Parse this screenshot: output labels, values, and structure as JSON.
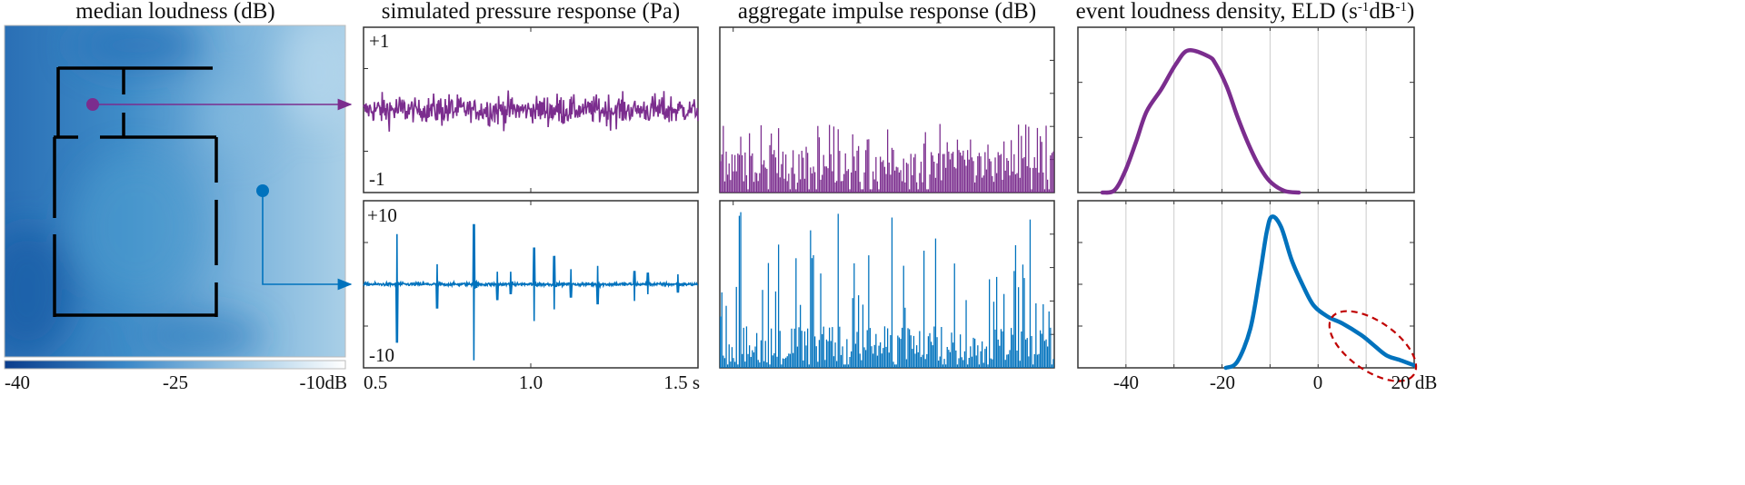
{
  "colors": {
    "purple": "#7b2d8e",
    "blue": "#0072bd",
    "annotation": "#c00000",
    "heat_dark": "#0b3d8c",
    "heat_light": "#ffffff"
  },
  "heatmap": {
    "title": "median loudness  (dB)",
    "colorbar": {
      "min_label": "-40",
      "mid_label": "-25",
      "max_label": "-10dB",
      "range": [
        -40,
        -10
      ]
    }
  },
  "pressure": {
    "title": "simulated pressure response (Pa)",
    "x_labels": [
      "0.5",
      "1.0",
      "1.5 s"
    ],
    "top": {
      "ymax_label": "+1",
      "ymin_label": "-1",
      "ylim": [
        -1,
        1
      ],
      "xlim": [
        0.5,
        1.5
      ],
      "typical_amplitude": 0.3
    },
    "bottom": {
      "ymax_label": "+10",
      "ymin_label": "-10",
      "ylim": [
        -10,
        10
      ],
      "xlim": [
        0.5,
        1.5
      ],
      "spikes": [
        {
          "t": 0.6,
          "up": 6.0,
          "down": -7.0
        },
        {
          "t": 0.72,
          "up": 2.4,
          "down": -2.9
        },
        {
          "t": 0.83,
          "up": 7.2,
          "down": -9.1
        },
        {
          "t": 0.9,
          "up": 1.5,
          "down": -1.9
        },
        {
          "t": 0.94,
          "up": 1.5,
          "down": -1.2
        },
        {
          "t": 1.01,
          "up": 4.4,
          "down": -4.4
        },
        {
          "t": 1.07,
          "up": 3.4,
          "down": -3.0
        },
        {
          "t": 1.12,
          "up": 1.8,
          "down": -1.6
        },
        {
          "t": 1.2,
          "up": 2.2,
          "down": -2.4
        },
        {
          "t": 1.31,
          "up": 1.6,
          "down": -2.0
        },
        {
          "t": 1.35,
          "up": 1.4,
          "down": -1.2
        },
        {
          "t": 1.44,
          "up": 1.2,
          "down": -1.0
        }
      ]
    }
  },
  "impulse": {
    "title": "aggregate impulse response (dB)"
  },
  "eld": {
    "title_main": "event loudness density, ELD (s",
    "title_sup1": "-1",
    "title_mid": "dB",
    "title_sup2": "-1",
    "title_end": ")",
    "x_labels": [
      "-40",
      "-20",
      "0",
      "20 dB"
    ]
  },
  "chart_data": [
    {
      "type": "heatmap",
      "title": "median loudness  (dB)",
      "colorbar_range": [
        -40,
        -10
      ],
      "colorbar_ticks": [
        "-40",
        "-25",
        "-10dB"
      ]
    },
    {
      "type": "line",
      "panel": "pressure-top",
      "series": [
        {
          "color": "#7b2d8e"
        }
      ],
      "xlim": [
        0.5,
        1.5
      ],
      "ylim": [
        -1,
        1
      ]
    },
    {
      "type": "line",
      "panel": "pressure-bottom",
      "series": [
        {
          "color": "#0072bd"
        }
      ],
      "xlim": [
        0.5,
        1.5
      ],
      "ylim": [
        -10,
        10
      ]
    },
    {
      "type": "bar",
      "panel": "impulse-top",
      "series": [
        {
          "color": "#7b2d8e"
        }
      ]
    },
    {
      "type": "bar",
      "panel": "impulse-bottom",
      "series": [
        {
          "color": "#0072bd"
        }
      ]
    },
    {
      "type": "line",
      "panel": "eld-top",
      "xlim": [
        -50,
        20
      ],
      "ylim": [
        0,
        3
      ],
      "grid": true,
      "x": [
        -44.9,
        -42.4,
        -40.2,
        -37.9,
        -35.7,
        -32.6,
        -29.6,
        -27.0,
        -22.8,
        -21.3,
        -19.0,
        -16.8,
        -14.5,
        -12.2,
        -10.0,
        -7.0,
        -4.0
      ],
      "y": [
        0,
        0.04,
        0.38,
        0.92,
        1.47,
        1.88,
        2.33,
        2.58,
        2.47,
        2.33,
        1.92,
        1.38,
        0.88,
        0.47,
        0.2,
        0.03,
        0
      ],
      "color": "#7b2d8e"
    },
    {
      "type": "line",
      "panel": "eld-bottom",
      "xlim": [
        -50,
        20
      ],
      "ylim": [
        0,
        4
      ],
      "grid": true,
      "x": [
        -19.2,
        -16.8,
        -14.1,
        -12.2,
        -10.7,
        -9.6,
        -7.7,
        -5.5,
        -3.2,
        -0.9,
        2.1,
        5.1,
        8.9,
        11.2,
        14.2,
        17.2,
        20.0
      ],
      "y": [
        0,
        0.15,
        0.94,
        2.16,
        3.25,
        3.62,
        3.37,
        2.58,
        1.98,
        1.49,
        1.22,
        1.06,
        0.79,
        0.58,
        0.3,
        0.18,
        0.06
      ],
      "color": "#0072bd",
      "annotation": {
        "shape": "dashed-ellipse",
        "x_range": [
          2,
          20
        ],
        "color": "#c00000"
      }
    }
  ]
}
